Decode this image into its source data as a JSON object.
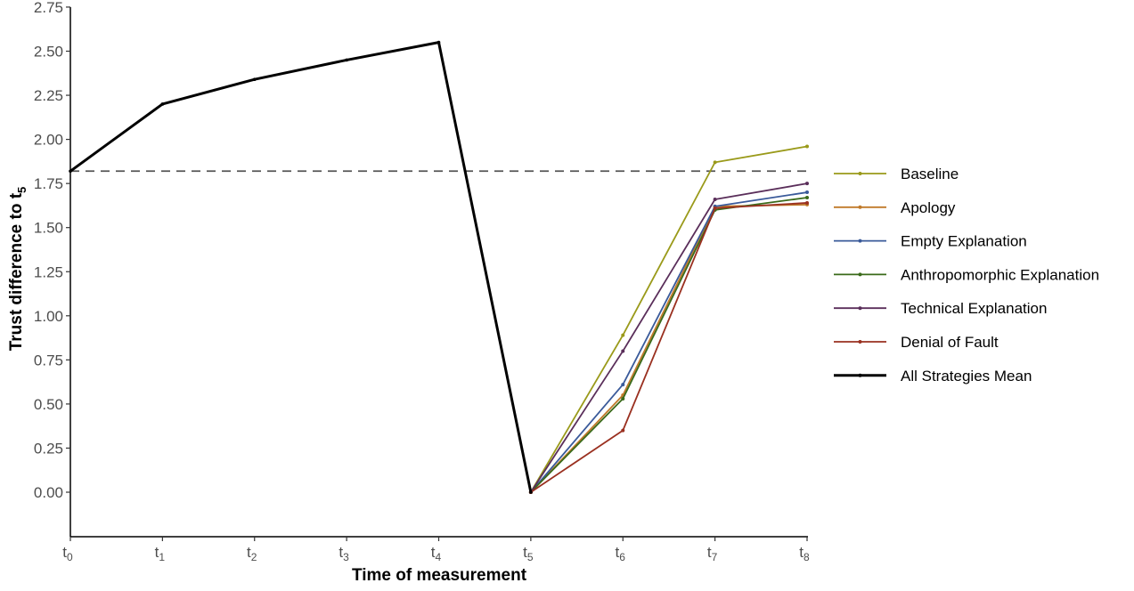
{
  "chart_data": {
    "type": "line",
    "title": "",
    "xlabel": "Time of measurement",
    "ylabel_main": "Trust difference to t",
    "ylabel_sub": "5",
    "x_ticks": [
      {
        "main": "t",
        "sub": "0"
      },
      {
        "main": "t",
        "sub": "1"
      },
      {
        "main": "t",
        "sub": "2"
      },
      {
        "main": "t",
        "sub": "3"
      },
      {
        "main": "t",
        "sub": "4"
      },
      {
        "main": "t",
        "sub": "5"
      },
      {
        "main": "t",
        "sub": "6"
      },
      {
        "main": "t",
        "sub": "7"
      },
      {
        "main": "t",
        "sub": "8"
      }
    ],
    "y_ticks": [
      "0.00",
      "0.25",
      "0.50",
      "0.75",
      "1.00",
      "1.25",
      "1.50",
      "1.75",
      "2.00",
      "2.25",
      "2.50",
      "2.75"
    ],
    "ylim": [
      -0.25,
      2.8
    ],
    "xlim": [
      0,
      8
    ],
    "reference_line": {
      "y": 1.82,
      "style": "dashed"
    },
    "grid": false,
    "legend_position": "right",
    "series": [
      {
        "name": "Baseline",
        "color": "#9a9a1a",
        "x": [
          5,
          6,
          7,
          8
        ],
        "values": [
          0.0,
          0.89,
          1.87,
          1.96
        ]
      },
      {
        "name": "Apology",
        "color": "#c07a2a",
        "x": [
          5,
          6,
          7,
          8
        ],
        "values": [
          0.0,
          0.55,
          1.62,
          1.63
        ]
      },
      {
        "name": "Empty Explanation",
        "color": "#3a5a9a",
        "x": [
          5,
          6,
          7,
          8
        ],
        "values": [
          0.0,
          0.61,
          1.62,
          1.7
        ]
      },
      {
        "name": "Anthropomorphic Explanation",
        "color": "#3a6a1a",
        "x": [
          5,
          6,
          7,
          8
        ],
        "values": [
          0.0,
          0.53,
          1.6,
          1.67
        ]
      },
      {
        "name": "Technical Explanation",
        "color": "#5a2e5a",
        "x": [
          5,
          6,
          7,
          8
        ],
        "values": [
          0.0,
          0.8,
          1.66,
          1.75
        ]
      },
      {
        "name": "Denial of Fault",
        "color": "#9a3020",
        "x": [
          5,
          6,
          7,
          8
        ],
        "values": [
          0.0,
          0.35,
          1.61,
          1.64
        ]
      },
      {
        "name": "All Strategies Mean",
        "color": "#000000",
        "x": [
          0,
          1,
          2,
          3,
          4,
          5
        ],
        "values": [
          1.82,
          2.2,
          2.34,
          2.45,
          2.55,
          0.0
        ],
        "thick": true
      }
    ]
  }
}
